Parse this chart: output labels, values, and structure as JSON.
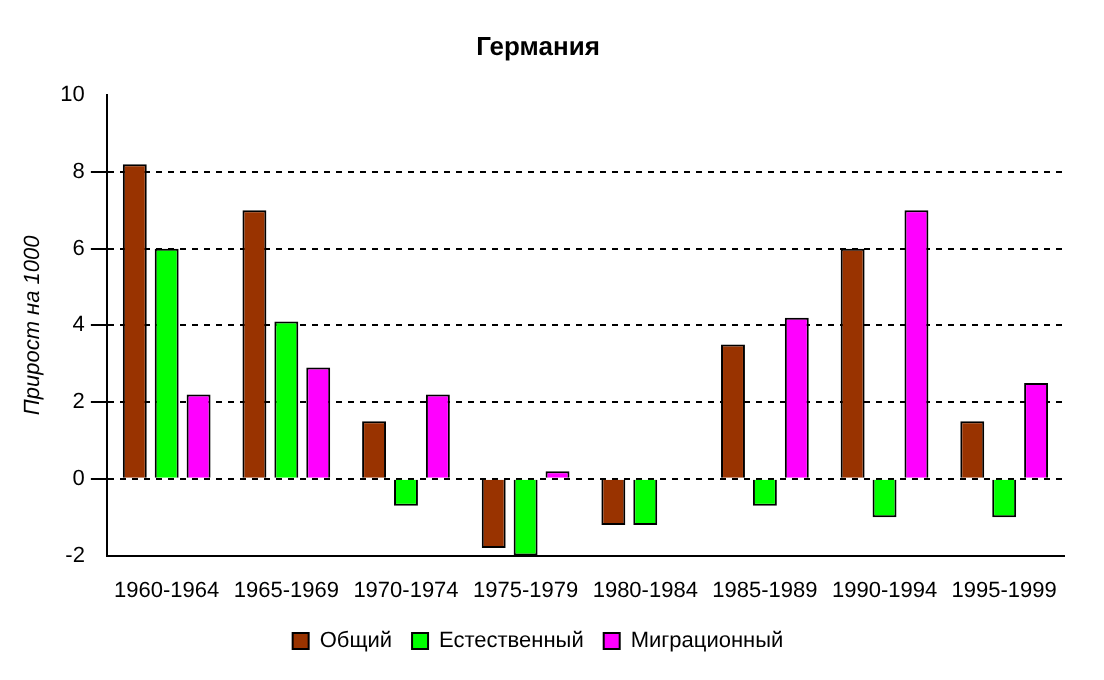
{
  "chart_data": {
    "type": "bar",
    "title": "Германия",
    "ylabel": "Прирост на 1000",
    "categories": [
      "1960-1964",
      "1965-1969",
      "1970-1974",
      "1975-1979",
      "1980-1984",
      "1985-1989",
      "1990-1994",
      "1995-1999"
    ],
    "series": [
      {
        "name": "Общий",
        "color": "#993300",
        "values": [
          8.2,
          7.0,
          1.5,
          -1.8,
          -1.2,
          3.5,
          6.0,
          1.5
        ]
      },
      {
        "name": "Естественный",
        "color": "#00ff00",
        "values": [
          6.0,
          4.1,
          -0.7,
          -2.0,
          -1.2,
          -0.7,
          -1.0,
          -1.0
        ]
      },
      {
        "name": "Миграционный",
        "color": "#ff00ff",
        "values": [
          2.2,
          2.9,
          2.2,
          0.2,
          0.0,
          4.2,
          7.0,
          2.5
        ]
      }
    ],
    "ylim": [
      -2,
      10
    ],
    "yticks": [
      -2,
      0,
      2,
      4,
      6,
      8,
      10
    ],
    "grid": "y",
    "legend": "bottom"
  }
}
